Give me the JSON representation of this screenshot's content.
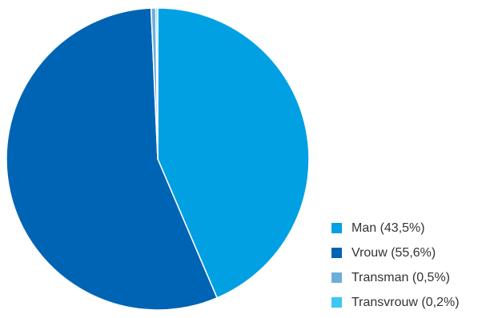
{
  "chart_data": {
    "type": "pie",
    "title": "",
    "start_angle_deg": 0,
    "direction": "clockwise",
    "slices": [
      {
        "label": "Man (43,5%)",
        "value": 43.5,
        "color": "#00a0e3"
      },
      {
        "label": "Vrouw (55,6%)",
        "value": 55.6,
        "color": "#0064b4"
      },
      {
        "label": "Transman (0,5%)",
        "value": 0.5,
        "color": "#6eaed8"
      },
      {
        "label": "Transvrouw (0,2%)",
        "value": 0.2,
        "color": "#3cc8f0"
      }
    ],
    "legend": {
      "position": "bottom-right"
    }
  }
}
